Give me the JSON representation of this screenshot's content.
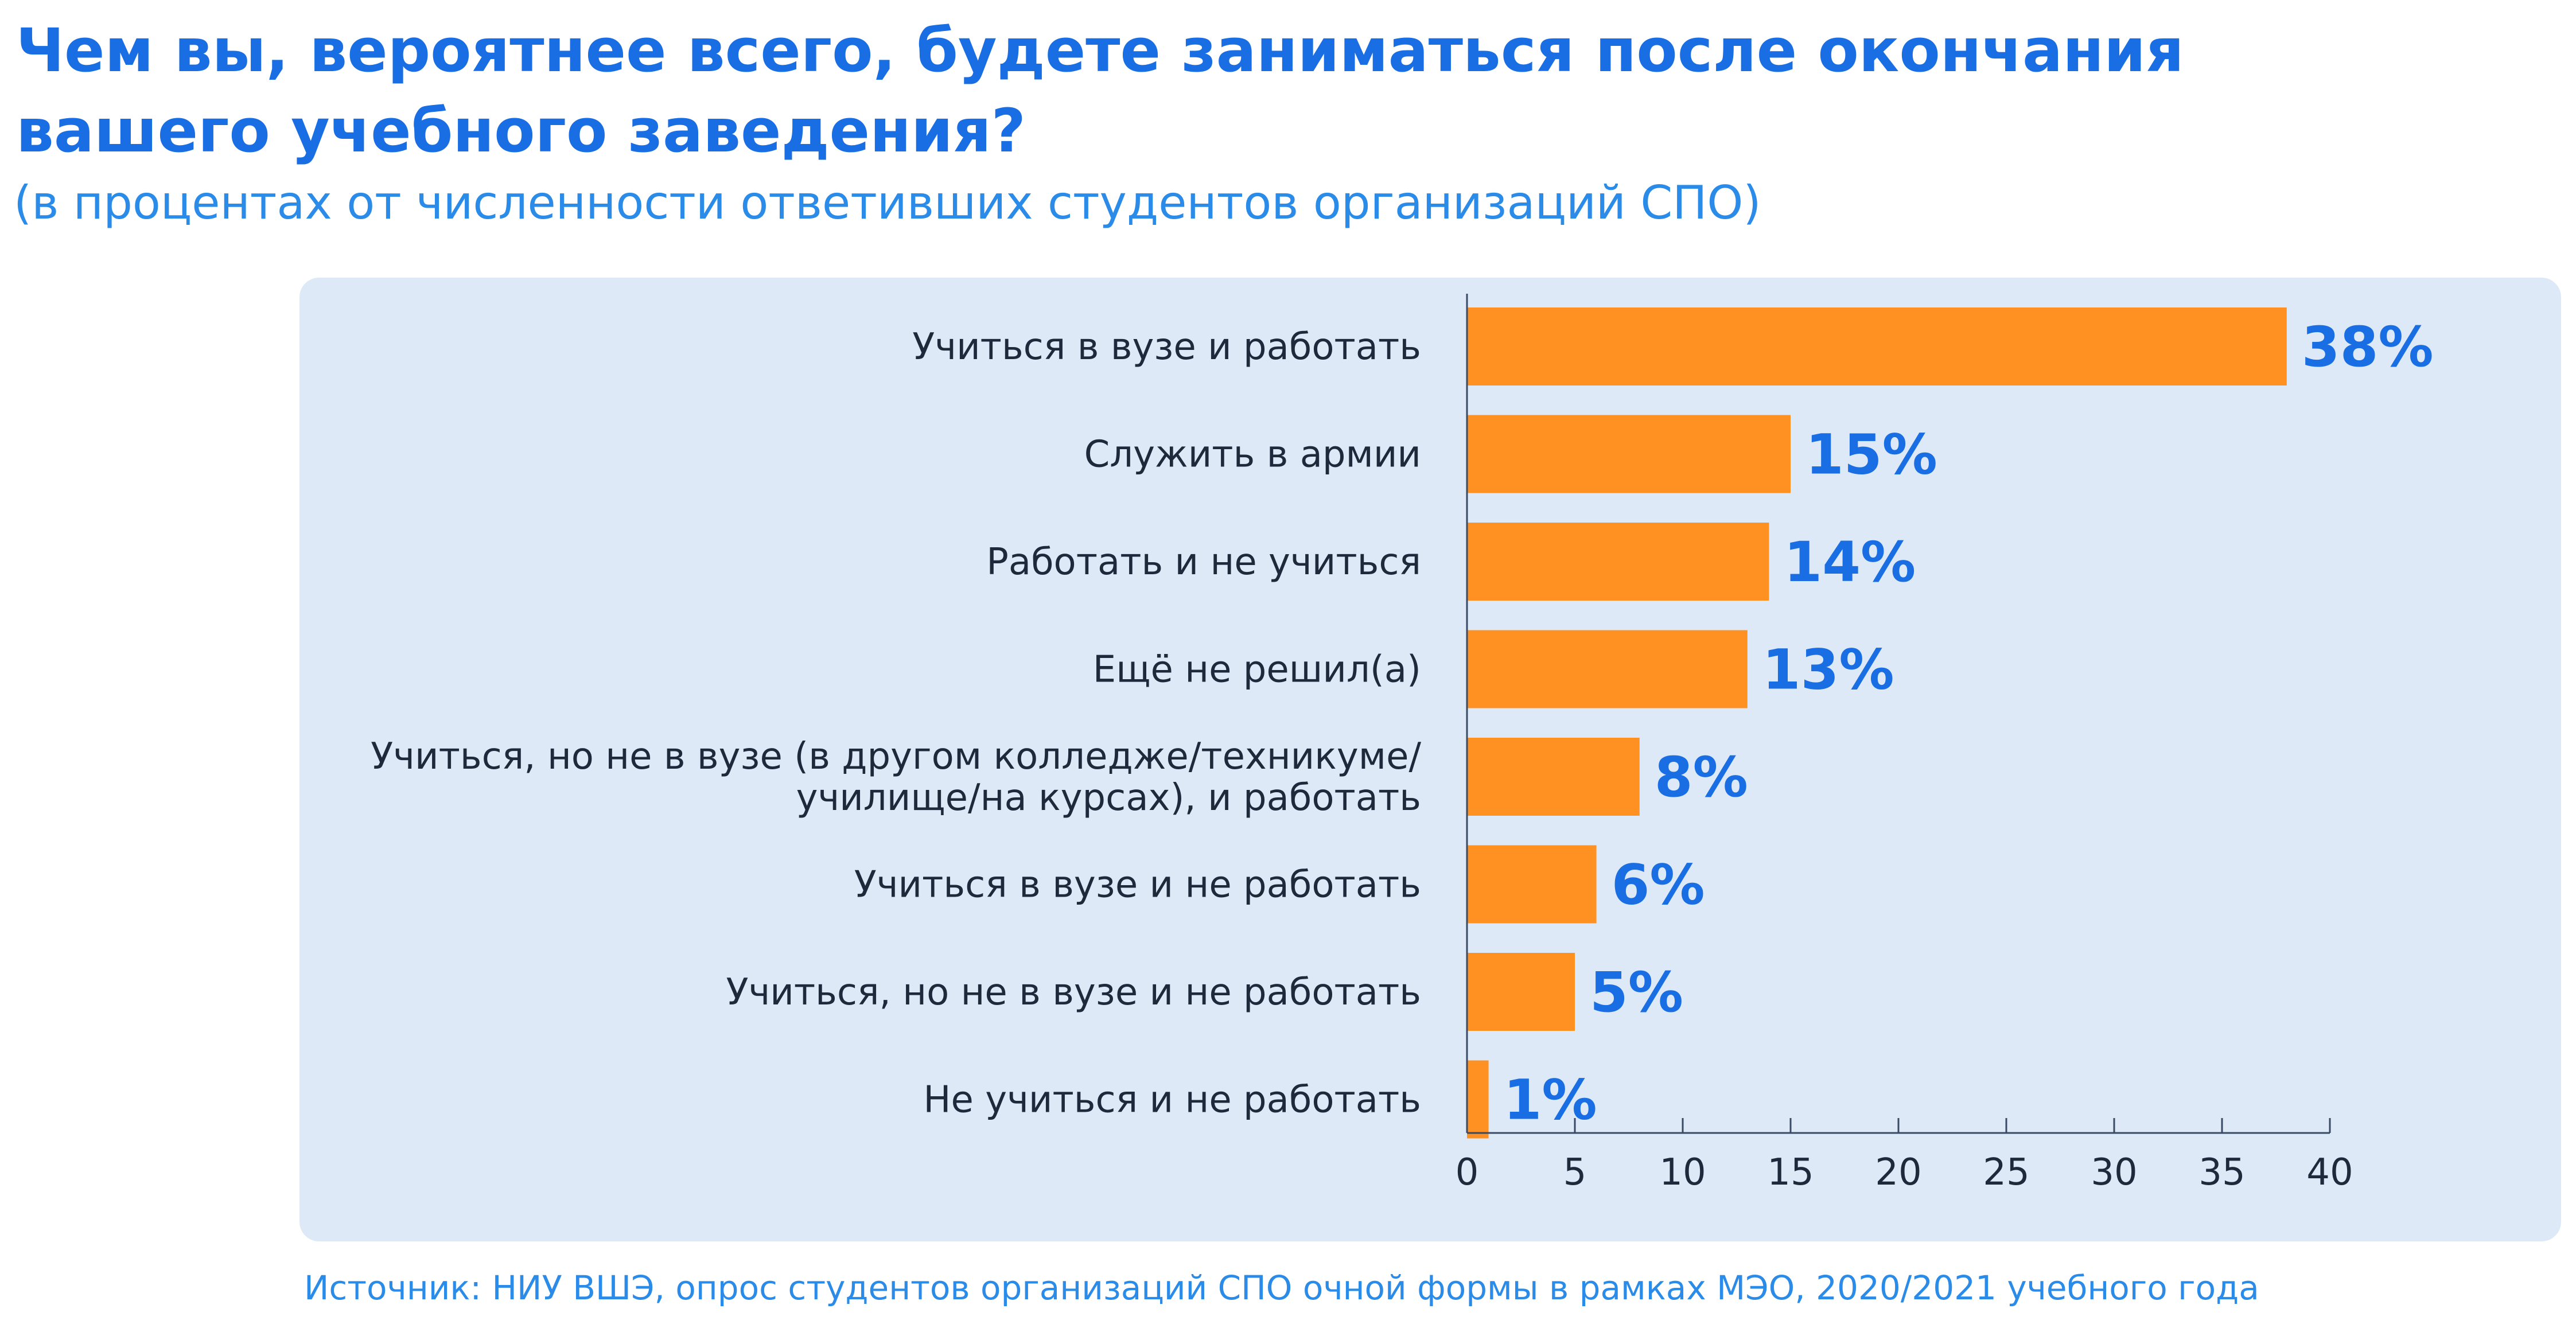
{
  "title": "Чем вы, вероятнее всего, будете заниматься после окончания вашего учебного заведения?",
  "subtitle": "(в процентах от численности ответивших студентов организаций СПО)",
  "source": "Источник: НИУ ВШЭ, опрос студентов организаций СПО очной формы в рамках МЭО, 2020/2021 учебного года",
  "colors": {
    "bar": "#ff9123",
    "value_label": "#1a6ee3",
    "category_label": "#1e2a3c",
    "panel": "#dde9f7",
    "axis": "#3a4a66"
  },
  "chart_data": {
    "type": "bar",
    "orientation": "horizontal",
    "categories": [
      [
        "Учиться в вузе и работать"
      ],
      [
        "Служить в армии"
      ],
      [
        "Работать и не учиться"
      ],
      [
        "Ещё не решил(а)"
      ],
      [
        "Учиться, но не в вузе (в другом колледже/техникуме/",
        "училище/на курсах), и работать"
      ],
      [
        "Учиться в вузе и не работать"
      ],
      [
        "Учиться, но не в вузе и не работать"
      ],
      [
        "Не учиться и не работать"
      ]
    ],
    "values": [
      38,
      15,
      14,
      13,
      8,
      6,
      5,
      1
    ],
    "value_labels": [
      "38%",
      "15%",
      "14%",
      "13%",
      "8%",
      "6%",
      "5%",
      "1%"
    ],
    "xlim": [
      0,
      40
    ],
    "xticks": [
      0,
      5,
      10,
      15,
      20,
      25,
      30,
      35,
      40
    ],
    "grid": false,
    "legend": false
  }
}
